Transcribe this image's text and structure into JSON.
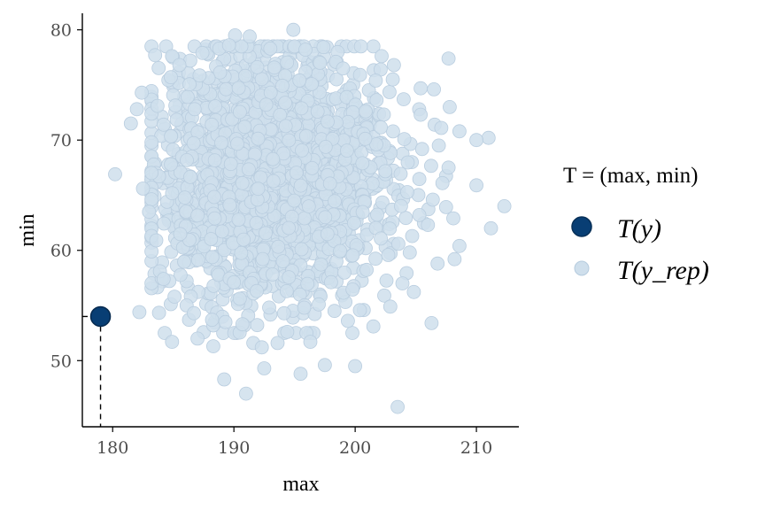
{
  "chart_data": {
    "type": "scatter",
    "xlabel": "max",
    "ylabel": "min",
    "xlim": [
      177.5,
      213.5
    ],
    "ylim": [
      44,
      81.5
    ],
    "x_ticks": [
      180,
      190,
      200,
      210
    ],
    "y_ticks": [
      50,
      60,
      70,
      80
    ],
    "grid": false,
    "legend": {
      "title": "T = (max, min)",
      "position": "right",
      "entries": [
        {
          "name": "T(y)",
          "color": "#083e74"
        },
        {
          "name": "T(y_rep)",
          "color": "#cfdfec"
        }
      ]
    },
    "series": [
      {
        "name": "T(y)",
        "color": "#083e74",
        "points": [
          [
            179,
            54
          ]
        ]
      },
      {
        "name": "T(y_rep)",
        "color": "#cfdfec",
        "points": [
          [
            180.2,
            66.9
          ],
          [
            181.5,
            71.5
          ],
          [
            182.2,
            54.4
          ],
          [
            183.5,
            77.7
          ],
          [
            184.9,
            51.7
          ],
          [
            186.3,
            53.7
          ],
          [
            187.0,
            52.0
          ],
          [
            188.3,
            51.3
          ],
          [
            189.2,
            48.3
          ],
          [
            191.0,
            47.0
          ],
          [
            192.5,
            49.3
          ],
          [
            193.6,
            51.6
          ],
          [
            195.5,
            48.8
          ],
          [
            196.3,
            51.7
          ],
          [
            197.5,
            49.6
          ],
          [
            200.0,
            49.5
          ],
          [
            203.5,
            45.8
          ],
          [
            201.5,
            53.1
          ],
          [
            206.3,
            53.4
          ],
          [
            203.9,
            57.0
          ],
          [
            204.5,
            59.8
          ],
          [
            206.8,
            58.8
          ],
          [
            208.2,
            59.2
          ],
          [
            208.6,
            60.4
          ],
          [
            208.1,
            62.9
          ],
          [
            210.0,
            65.9
          ],
          [
            211.2,
            62.0
          ],
          [
            212.3,
            64.0
          ],
          [
            211.0,
            70.2
          ],
          [
            210.0,
            70.0
          ],
          [
            208.6,
            70.8
          ],
          [
            207.8,
            73.0
          ],
          [
            206.5,
            74.6
          ],
          [
            205.4,
            74.7
          ],
          [
            203.2,
            76.8
          ],
          [
            202.1,
            76.4
          ],
          [
            198.4,
            77.1
          ],
          [
            195.9,
            78.2
          ],
          [
            194.9,
            80.0
          ],
          [
            191.3,
            79.4
          ],
          [
            190.1,
            79.5
          ],
          [
            188.8,
            78.3
          ],
          [
            186.4,
            77.2
          ],
          [
            185.5,
            76.8
          ],
          [
            207.7,
            77.4
          ],
          [
            182.0,
            72.8
          ],
          [
            182.4,
            74.3
          ],
          [
            183.2,
            69.8
          ],
          [
            182.5,
            65.6
          ],
          [
            183.0,
            63.5
          ],
          [
            183.6,
            60.9
          ],
          [
            183.9,
            58.1
          ],
          [
            184.2,
            57.4
          ],
          [
            185.1,
            55.8
          ],
          [
            186.1,
            55.0
          ],
          [
            186.7,
            54.3
          ],
          [
            188.2,
            53.7
          ],
          [
            189.3,
            53.5
          ],
          [
            190.7,
            53.3
          ],
          [
            191.6,
            51.6
          ],
          [
            192.3,
            51.2
          ],
          [
            194.4,
            52.6
          ],
          [
            195.8,
            54.8
          ],
          [
            197.0,
            55.1
          ],
          [
            198.3,
            54.5
          ],
          [
            199.4,
            53.6
          ],
          [
            202.4,
            55.9
          ],
          [
            202.9,
            54.9
          ],
          [
            204.7,
            61.3
          ],
          [
            206.0,
            62.3
          ],
          [
            206.4,
            64.6
          ],
          [
            207.2,
            66.1
          ],
          [
            207.7,
            67.5
          ],
          [
            206.9,
            69.5
          ],
          [
            207.1,
            71.1
          ],
          [
            205.4,
            72.3
          ],
          [
            204.0,
            73.7
          ],
          [
            203.1,
            75.5
          ],
          [
            201.7,
            75.4
          ],
          [
            200.4,
            75.9
          ],
          [
            199.0,
            76.5
          ],
          [
            197.1,
            77.0
          ],
          [
            193.0,
            78.3
          ],
          [
            189.6,
            78.6
          ],
          [
            187.4,
            77.9
          ],
          [
            184.8,
            75.7
          ],
          [
            183.7,
            73.1
          ],
          [
            184.2,
            71.4
          ],
          [
            184.8,
            67.8
          ]
        ]
      }
    ]
  }
}
